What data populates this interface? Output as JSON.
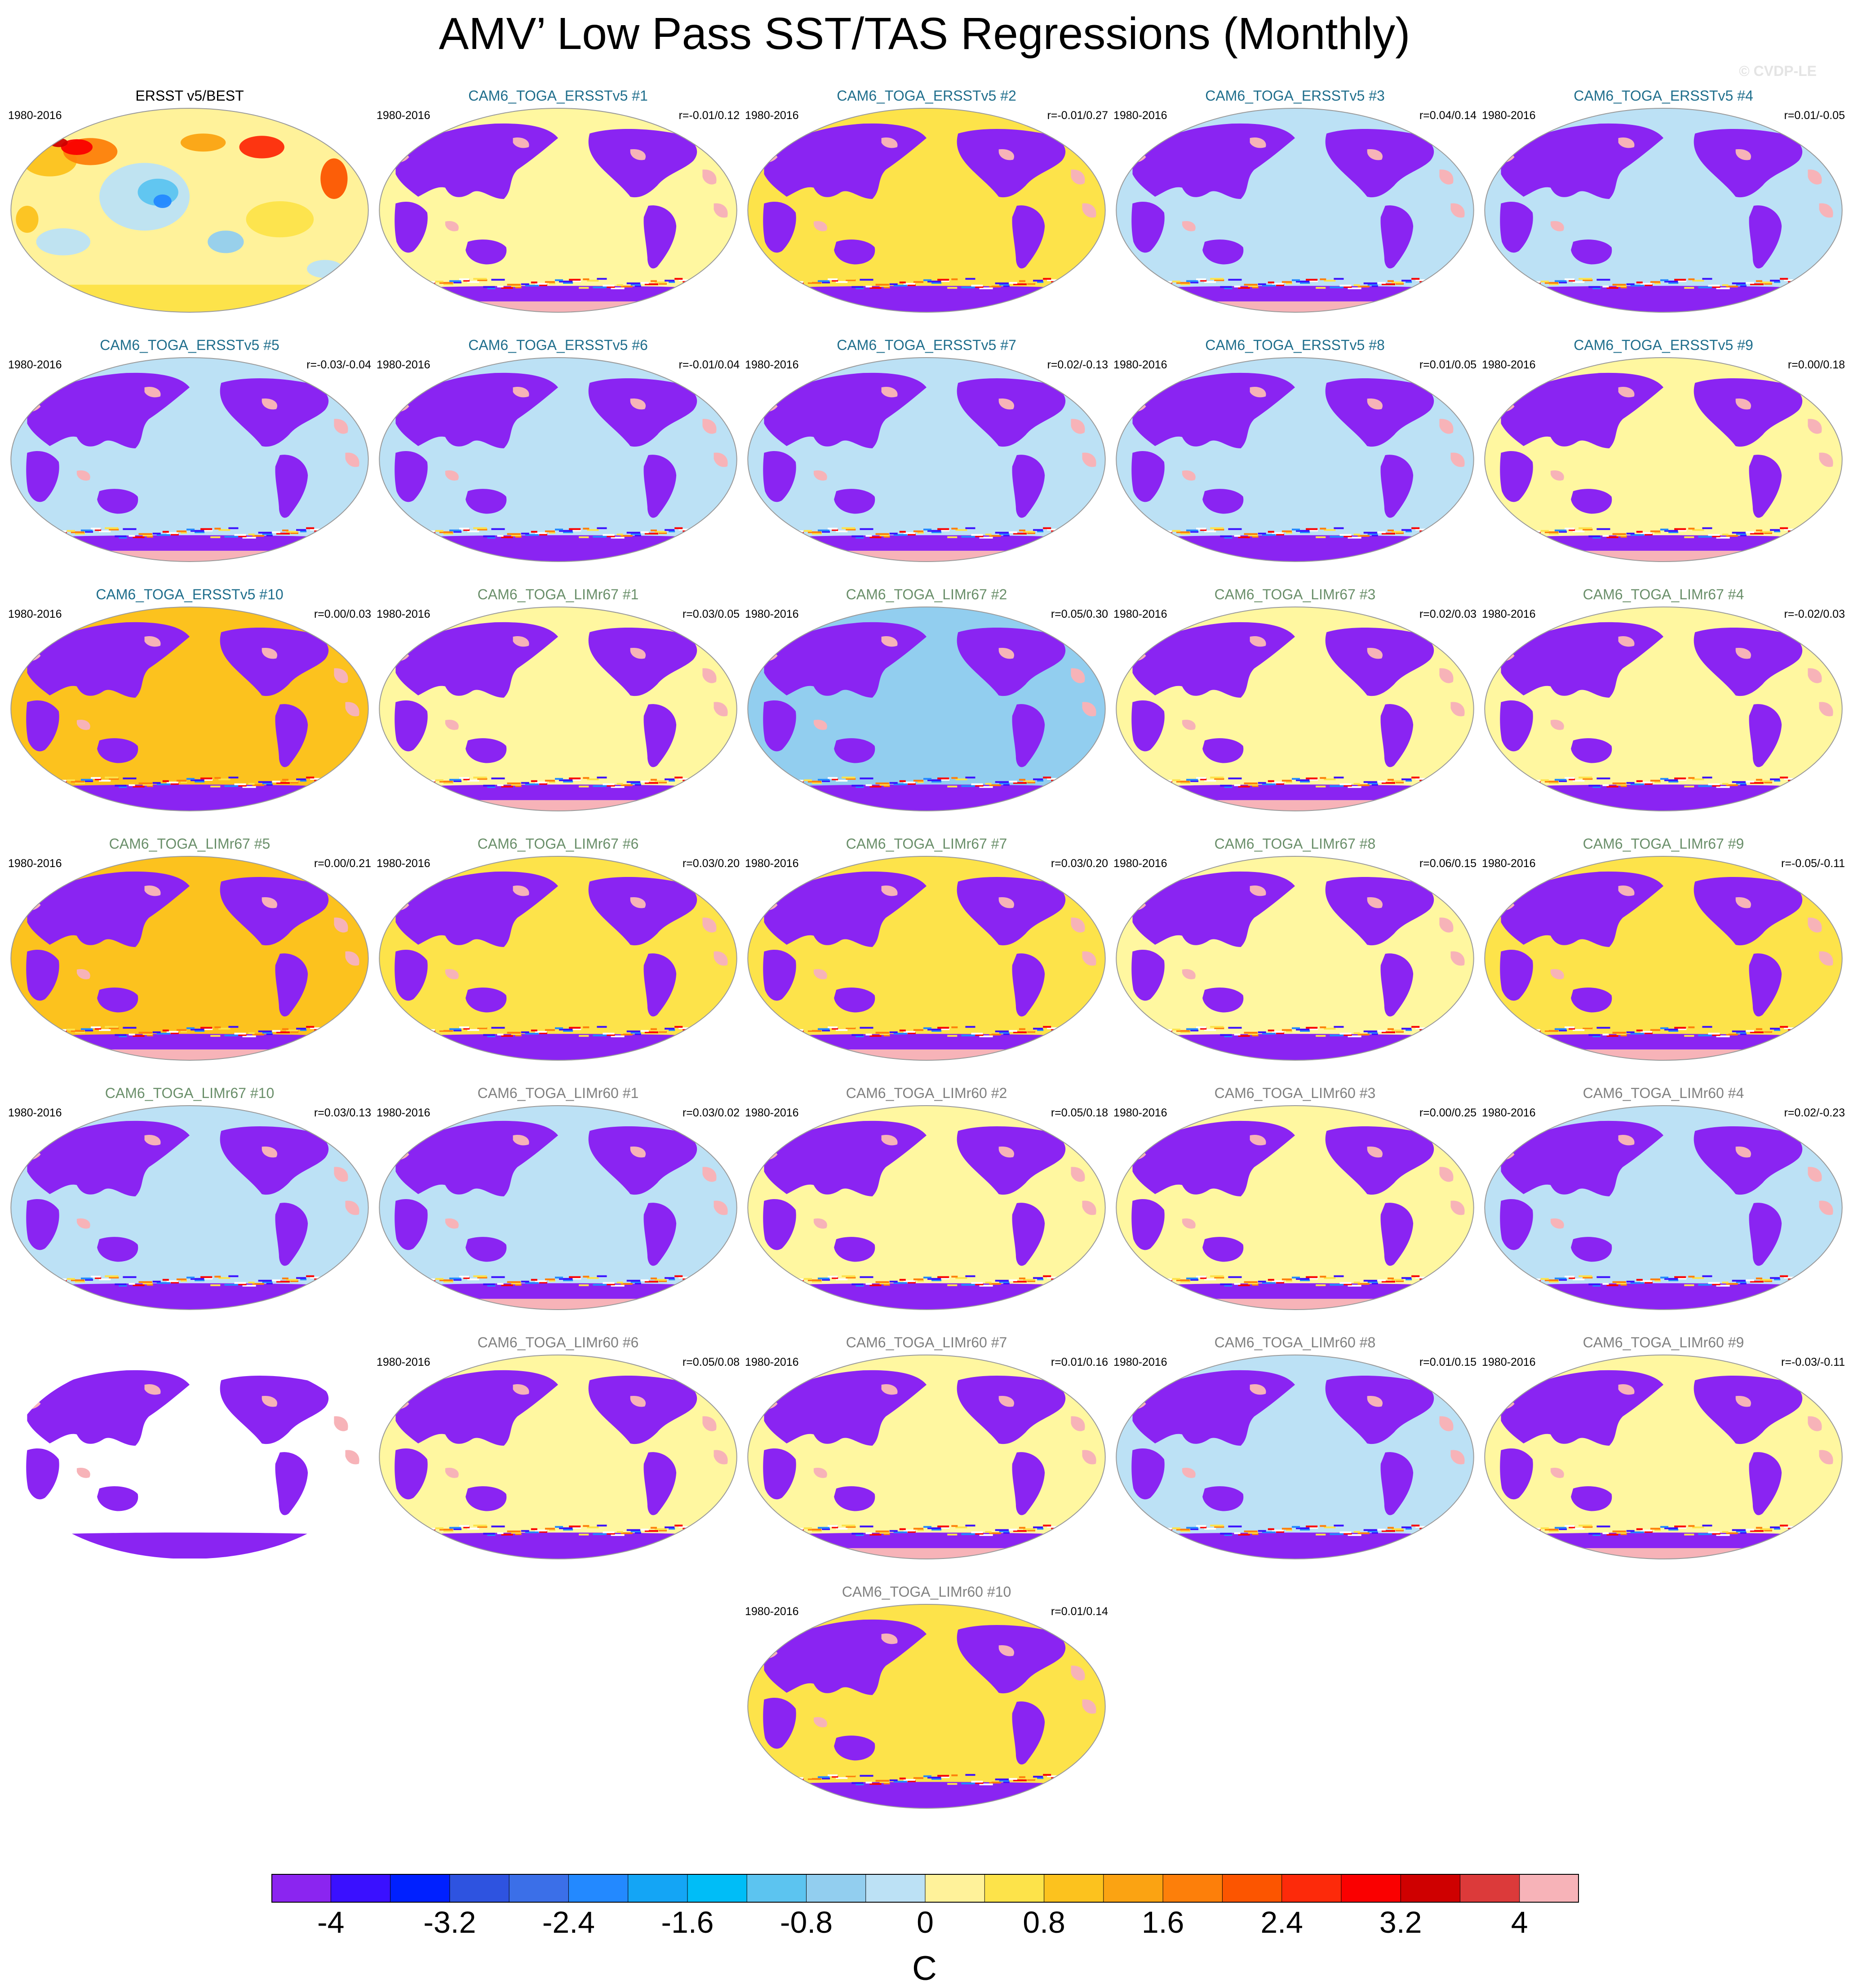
{
  "title": "AMV’ Low Pass SST/TAS Regressions (Monthly)",
  "credit": "© CVDP-LE",
  "colors": {
    "title_blue": "#1f6e8c",
    "title_green": "#6a8f6a",
    "title_gray": "#808080",
    "land": "#8a24f2",
    "ice": "#f7b3b8",
    "coast": "#9a9a9a"
  },
  "colorbar": {
    "colors": [
      "#8b25f0",
      "#3a10ff",
      "#0020ff",
      "#2e53e0",
      "#3b6fe8",
      "#2389ff",
      "#14a5f5",
      "#00bdf7",
      "#5cc4f0",
      "#92ceef",
      "#bce1f5",
      "#fff29a",
      "#fde34a",
      "#fcc21e",
      "#fba312",
      "#fd7f0a",
      "#fc5500",
      "#fd2a0a",
      "#fa0000",
      "#cf0000",
      "#dc3a3a",
      "#f7b3b8"
    ],
    "tick_labels": [
      "-4",
      "-3.2",
      "-2.4",
      "-1.6",
      "-0.8",
      "0",
      "0.8",
      "1.6",
      "2.4",
      "3.2",
      "4"
    ],
    "unit": "C"
  },
  "panels": [
    {
      "title": "ERSST v5/BEST",
      "title_color": "#000000",
      "period": "1980-2016",
      "r": "",
      "ocean": "obs"
    },
    {
      "title": "CAM6_TOGA_ERSSTv5 #1",
      "title_color": "#1f6e8c",
      "period": "1980-2016",
      "r": "r=-0.01/0.12",
      "ocean": "#fff7a0"
    },
    {
      "title": "CAM6_TOGA_ERSSTv5 #2",
      "title_color": "#1f6e8c",
      "period": "1980-2016",
      "r": "r=-0.01/0.27",
      "ocean": "#fde34a"
    },
    {
      "title": "CAM6_TOGA_ERSSTv5 #3",
      "title_color": "#1f6e8c",
      "period": "1980-2016",
      "r": "r=0.04/0.14",
      "ocean": "#bce1f5"
    },
    {
      "title": "CAM6_TOGA_ERSSTv5 #4",
      "title_color": "#1f6e8c",
      "period": "1980-2016",
      "r": "r=0.01/-0.05",
      "ocean": "#bce1f5"
    },
    {
      "title": "CAM6_TOGA_ERSSTv5 #5",
      "title_color": "#1f6e8c",
      "period": "1980-2016",
      "r": "r=-0.03/-0.04",
      "ocean": "#bce1f5"
    },
    {
      "title": "CAM6_TOGA_ERSSTv5 #6",
      "title_color": "#1f6e8c",
      "period": "1980-2016",
      "r": "r=-0.01/0.04",
      "ocean": "#bce1f5"
    },
    {
      "title": "CAM6_TOGA_ERSSTv5 #7",
      "title_color": "#1f6e8c",
      "period": "1980-2016",
      "r": "r=0.02/-0.13",
      "ocean": "#bce1f5"
    },
    {
      "title": "CAM6_TOGA_ERSSTv5 #8",
      "title_color": "#1f6e8c",
      "period": "1980-2016",
      "r": "r=0.01/0.05",
      "ocean": "#bce1f5"
    },
    {
      "title": "CAM6_TOGA_ERSSTv5 #9",
      "title_color": "#1f6e8c",
      "period": "1980-2016",
      "r": "r=0.00/0.18",
      "ocean": "#fff7a0"
    },
    {
      "title": "CAM6_TOGA_ERSSTv5 #10",
      "title_color": "#1f6e8c",
      "period": "1980-2016",
      "r": "r=0.00/0.03",
      "ocean": "#fcc21e"
    },
    {
      "title": "CAM6_TOGA_LIMr67 #1",
      "title_color": "#6a8f6a",
      "period": "1980-2016",
      "r": "r=0.03/0.05",
      "ocean": "#fff7a0"
    },
    {
      "title": "CAM6_TOGA_LIMr67 #2",
      "title_color": "#6a8f6a",
      "period": "1980-2016",
      "r": "r=0.05/0.30",
      "ocean": "#92ceef"
    },
    {
      "title": "CAM6_TOGA_LIMr67 #3",
      "title_color": "#6a8f6a",
      "period": "1980-2016",
      "r": "r=0.02/0.03",
      "ocean": "#fff7a0"
    },
    {
      "title": "CAM6_TOGA_LIMr67 #4",
      "title_color": "#6a8f6a",
      "period": "1980-2016",
      "r": "r=-0.02/0.03",
      "ocean": "#fff7a0"
    },
    {
      "title": "CAM6_TOGA_LIMr67 #5",
      "title_color": "#6a8f6a",
      "period": "1980-2016",
      "r": "r=0.00/0.21",
      "ocean": "#fcc21e"
    },
    {
      "title": "CAM6_TOGA_LIMr67 #6",
      "title_color": "#6a8f6a",
      "period": "1980-2016",
      "r": "r=0.03/0.20",
      "ocean": "#fde34a"
    },
    {
      "title": "CAM6_TOGA_LIMr67 #7",
      "title_color": "#6a8f6a",
      "period": "1980-2016",
      "r": "r=0.03/0.20",
      "ocean": "#fde34a"
    },
    {
      "title": "CAM6_TOGA_LIMr67 #8",
      "title_color": "#6a8f6a",
      "period": "1980-2016",
      "r": "r=0.06/0.15",
      "ocean": "#fff7a0"
    },
    {
      "title": "CAM6_TOGA_LIMr67 #9",
      "title_color": "#6a8f6a",
      "period": "1980-2016",
      "r": "r=-0.05/-0.11",
      "ocean": "#fde34a"
    },
    {
      "title": "CAM6_TOGA_LIMr67 #10",
      "title_color": "#6a8f6a",
      "period": "1980-2016",
      "r": "r=0.03/0.13",
      "ocean": "#bce1f5"
    },
    {
      "title": "CAM6_TOGA_LIMr60 #1",
      "title_color": "#808080",
      "period": "1980-2016",
      "r": "r=0.03/0.02",
      "ocean": "#bce1f5"
    },
    {
      "title": "CAM6_TOGA_LIMr60 #2",
      "title_color": "#808080",
      "period": "1980-2016",
      "r": "r=0.05/0.18",
      "ocean": "#fff7a0"
    },
    {
      "title": "CAM6_TOGA_LIMr60 #3",
      "title_color": "#808080",
      "period": "1980-2016",
      "r": "r=0.00/0.25",
      "ocean": "#fff7a0"
    },
    {
      "title": "CAM6_TOGA_LIMr60 #4",
      "title_color": "#808080",
      "period": "1980-2016",
      "r": "r=0.02/-0.23",
      "ocean": "#bce1f5"
    },
    {
      "title": "",
      "title_color": "#808080",
      "period": "",
      "r": "",
      "ocean": "#ffffff"
    },
    {
      "title": "CAM6_TOGA_LIMr60 #6",
      "title_color": "#808080",
      "period": "1980-2016",
      "r": "r=0.05/0.08",
      "ocean": "#fff7a0"
    },
    {
      "title": "CAM6_TOGA_LIMr60 #7",
      "title_color": "#808080",
      "period": "1980-2016",
      "r": "r=0.01/0.16",
      "ocean": "#fff7a0"
    },
    {
      "title": "CAM6_TOGA_LIMr60 #8",
      "title_color": "#808080",
      "period": "1980-2016",
      "r": "r=0.01/0.15",
      "ocean": "#bce1f5"
    },
    {
      "title": "CAM6_TOGA_LIMr60 #9",
      "title_color": "#808080",
      "period": "1980-2016",
      "r": "r=-0.03/-0.11",
      "ocean": "#fff7a0"
    },
    {
      "title": "CAM6_TOGA_LIMr60 #10",
      "title_color": "#808080",
      "period": "1980-2016",
      "r": "r=0.01/0.14",
      "ocean": "#fde34a"
    }
  ]
}
